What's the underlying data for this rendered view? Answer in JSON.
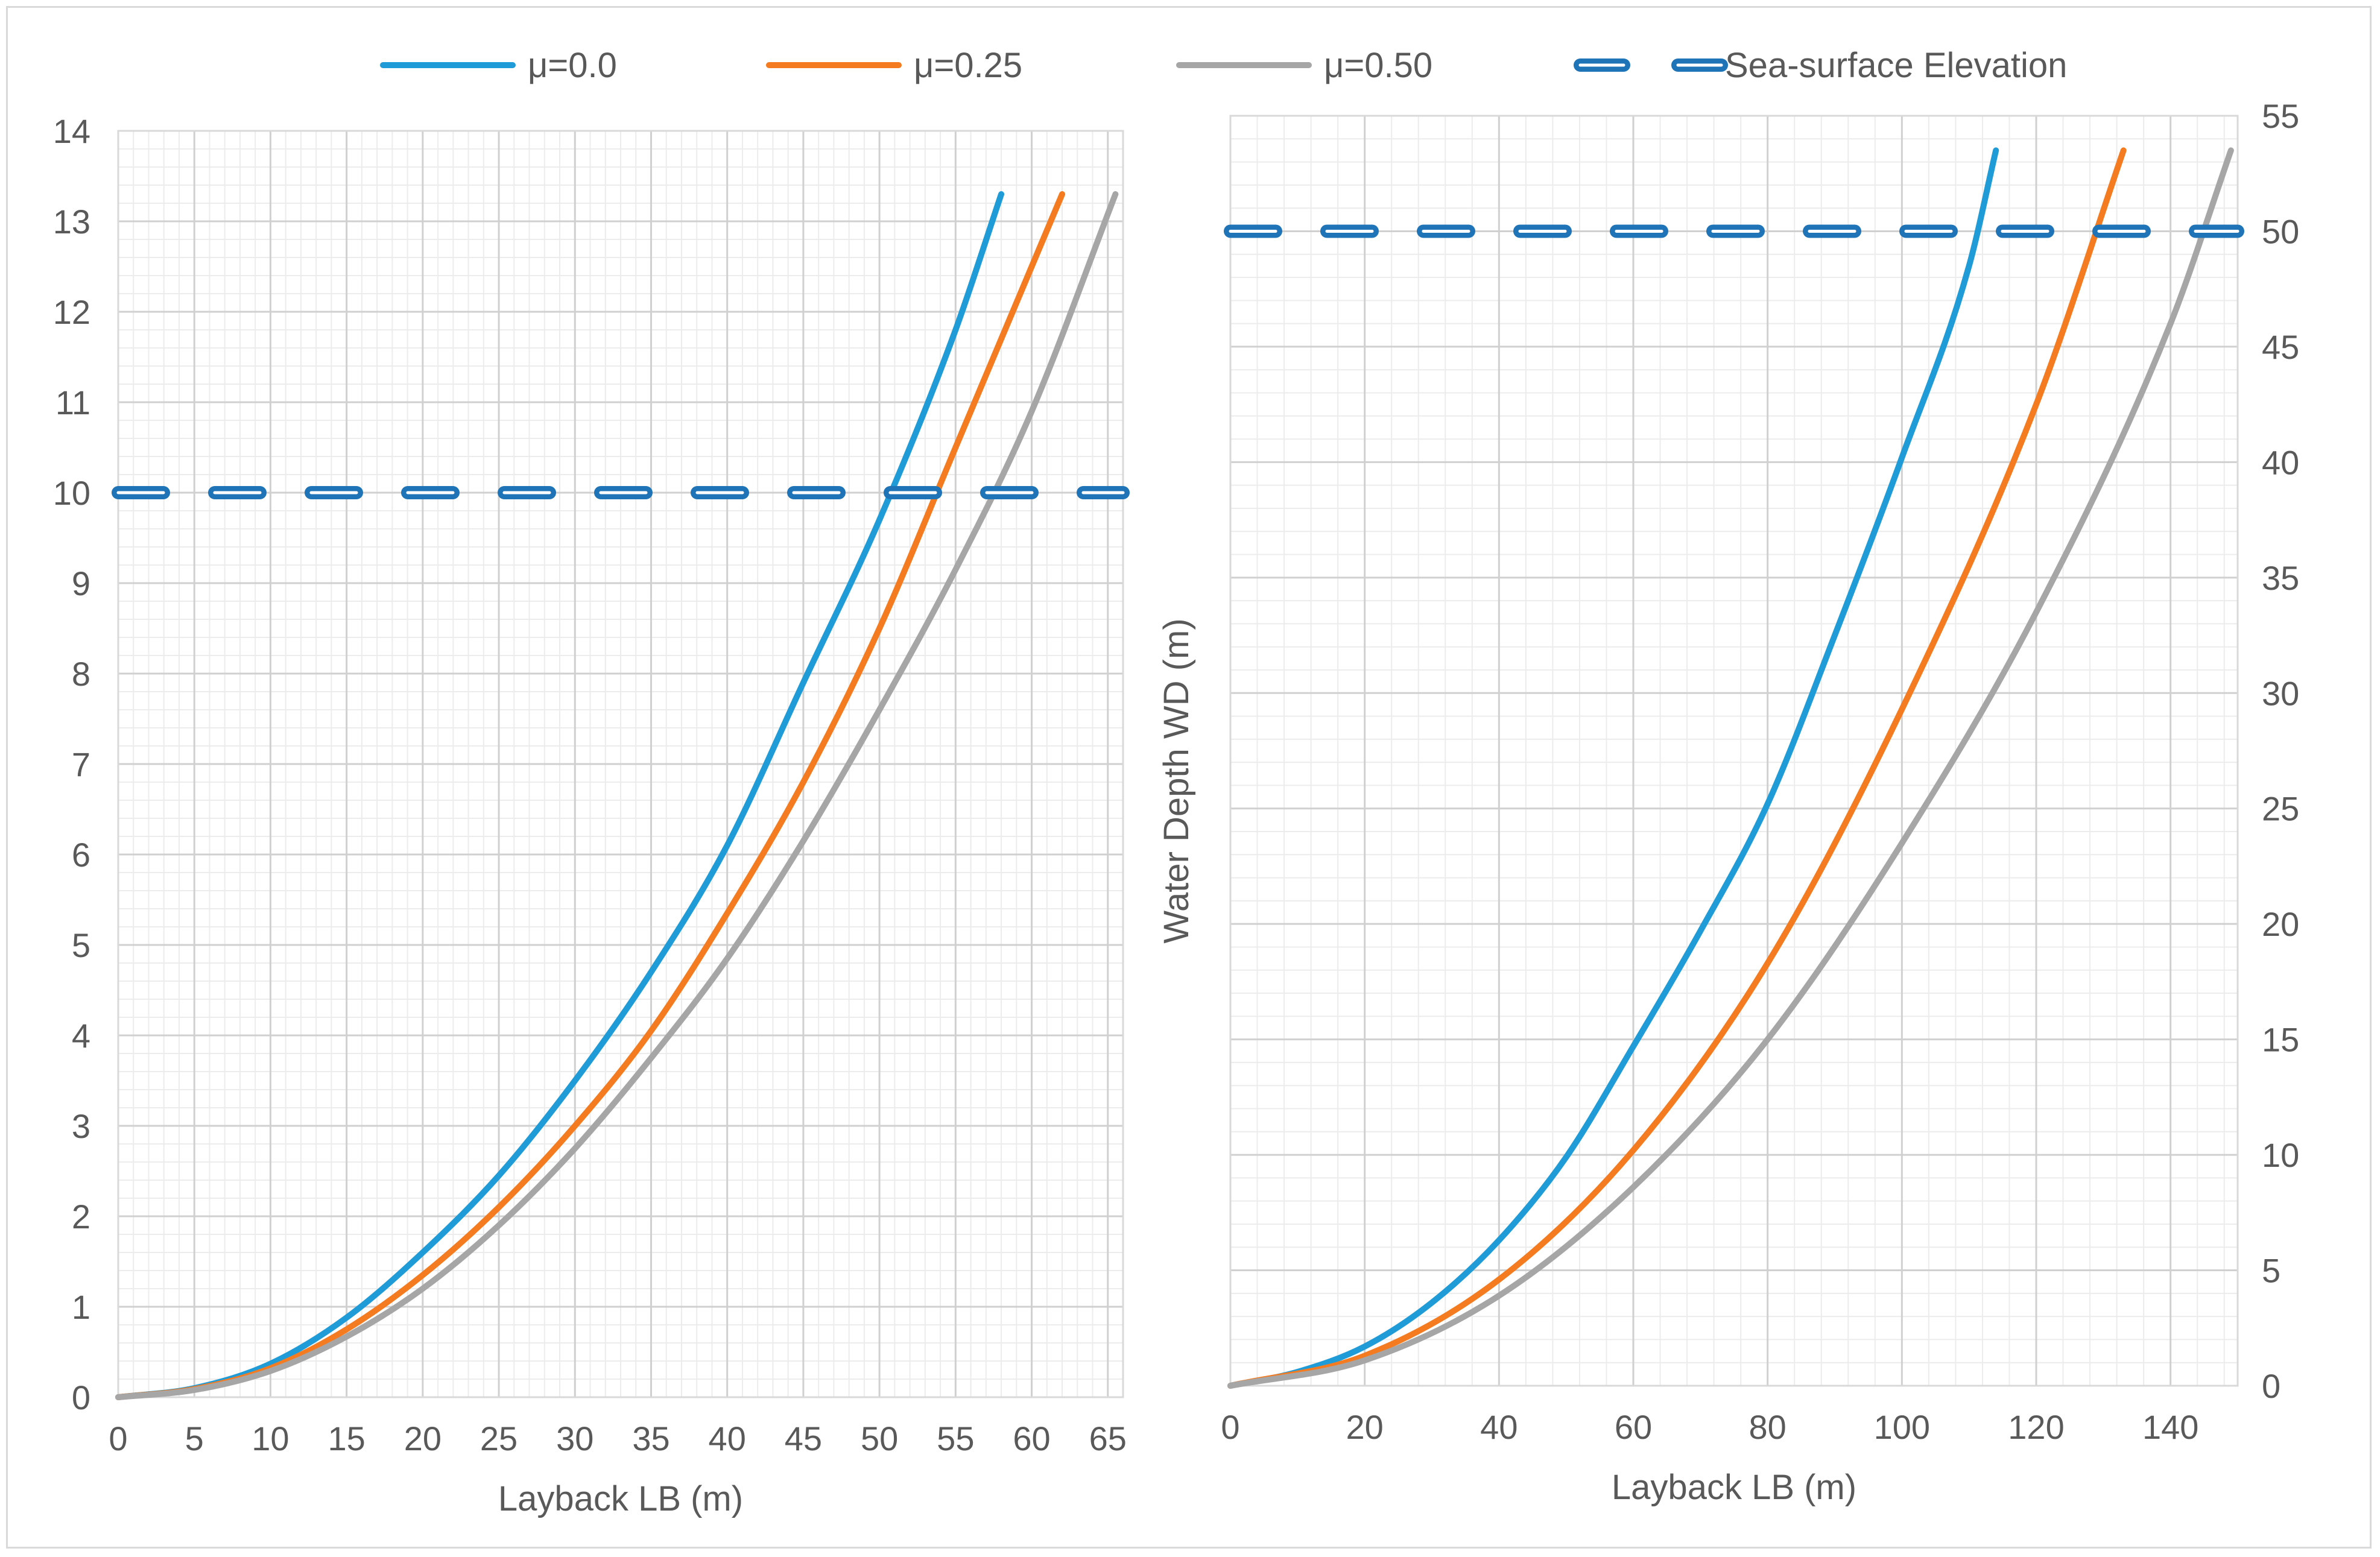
{
  "legend": [
    {
      "name": "μ=0.0",
      "color": "#1f9bd7",
      "style": "solid"
    },
    {
      "name": "μ=0.25",
      "color": "#f47b20",
      "style": "solid"
    },
    {
      "name": "μ=0.50",
      "color": "#a6a6a6",
      "style": "solid"
    },
    {
      "name": "Sea-surface Elevation",
      "color": "#1f74b8",
      "style": "dashed"
    }
  ],
  "chart_data": [
    {
      "type": "line",
      "panel": "left",
      "title": "",
      "xlabel": "Layback LB (m)",
      "ylabel": "",
      "xlim": [
        0,
        66
      ],
      "ylim": [
        0,
        14
      ],
      "xticks": [
        0,
        5,
        10,
        15,
        20,
        25,
        30,
        35,
        40,
        45,
        50,
        55,
        60,
        65
      ],
      "yticks": [
        0,
        1,
        2,
        3,
        4,
        5,
        6,
        7,
        8,
        9,
        10,
        11,
        12,
        13,
        14
      ],
      "y_axis_side": "left",
      "grid": true,
      "series": [
        {
          "name": "μ=0.0",
          "color": "#1f9bd7",
          "x": [
            0,
            5,
            10,
            15,
            20,
            25,
            30,
            35,
            40,
            45,
            50,
            55,
            58
          ],
          "y": [
            0,
            0.1,
            0.37,
            0.88,
            1.6,
            2.45,
            3.5,
            4.7,
            6.1,
            7.9,
            9.7,
            11.8,
            13.3
          ]
        },
        {
          "name": "μ=0.25",
          "color": "#f47b20",
          "x": [
            0,
            5,
            10,
            15,
            20,
            25,
            30,
            35,
            40,
            45,
            50,
            55,
            60,
            62
          ],
          "y": [
            0,
            0.09,
            0.32,
            0.75,
            1.35,
            2.1,
            3.0,
            4.05,
            5.35,
            6.8,
            8.5,
            10.5,
            12.5,
            13.3
          ]
        },
        {
          "name": "μ=0.50",
          "color": "#a6a6a6",
          "x": [
            0,
            5,
            10,
            15,
            20,
            25,
            30,
            35,
            40,
            45,
            50,
            55,
            60,
            65.5
          ],
          "y": [
            0,
            0.08,
            0.29,
            0.67,
            1.2,
            1.9,
            2.75,
            3.75,
            4.85,
            6.15,
            7.6,
            9.15,
            10.9,
            13.3
          ]
        },
        {
          "name": "Sea-surface Elevation",
          "color": "#1f74b8",
          "style": "dashed",
          "x": [
            0,
            66
          ],
          "y": [
            10,
            10
          ]
        }
      ]
    },
    {
      "type": "line",
      "panel": "right",
      "title": "",
      "xlabel": "Layback LB (m)",
      "ylabel": "Water Depth WD (m)",
      "xlim": [
        0,
        150
      ],
      "ylim": [
        0,
        55
      ],
      "xticks": [
        0,
        20,
        40,
        60,
        80,
        100,
        120,
        140
      ],
      "yticks": [
        0,
        5,
        10,
        15,
        20,
        25,
        30,
        35,
        40,
        45,
        50,
        55
      ],
      "y_axis_side": "right",
      "grid": true,
      "series": [
        {
          "name": "μ=0.0",
          "color": "#1f9bd7",
          "x": [
            0,
            10,
            20,
            30,
            40,
            50,
            60,
            70,
            80,
            90,
            100,
            110,
            114
          ],
          "y": [
            0,
            0.6,
            1.7,
            3.6,
            6.3,
            9.9,
            14.7,
            19.7,
            25.2,
            32.5,
            40.2,
            48.5,
            53.5
          ]
        },
        {
          "name": "μ=0.25",
          "color": "#f47b20",
          "x": [
            0,
            20,
            40,
            60,
            80,
            100,
            120,
            133
          ],
          "y": [
            0,
            1.3,
            4.6,
            10.2,
            18.3,
            29.3,
            42.5,
            53.5
          ]
        },
        {
          "name": "μ=0.50",
          "color": "#a6a6a6",
          "x": [
            0,
            20,
            40,
            60,
            80,
            100,
            120,
            140,
            149
          ],
          "y": [
            0,
            1.1,
            3.9,
            8.6,
            15.0,
            23.5,
            33.5,
            46.0,
            53.5
          ]
        },
        {
          "name": "Sea-surface Elevation",
          "color": "#1f74b8",
          "style": "dashed",
          "x": [
            0,
            150
          ],
          "y": [
            50,
            50
          ]
        }
      ]
    }
  ]
}
